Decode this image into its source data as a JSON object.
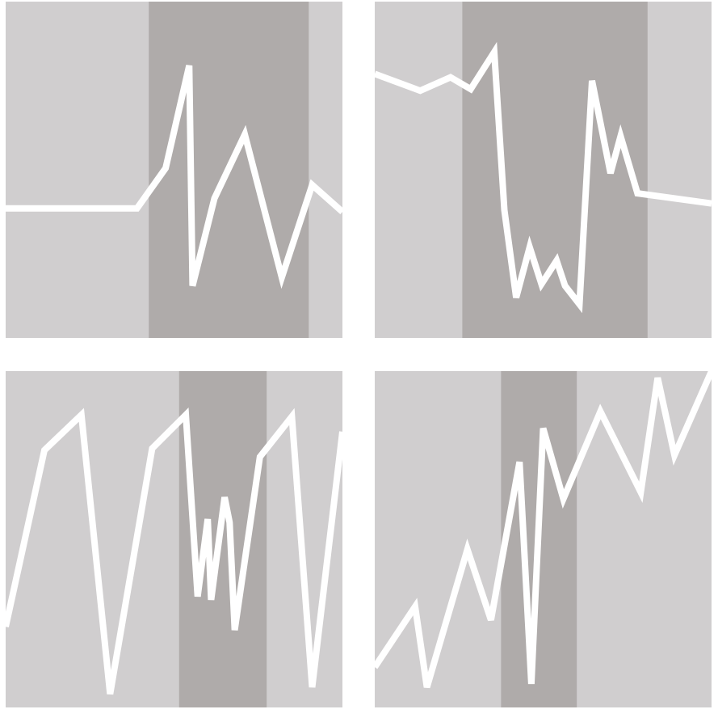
{
  "colors": {
    "page_background": "#ffffff",
    "panel_background": "#d0cecf",
    "highlight_band": "#afabaa",
    "line": "#ffffff"
  },
  "chart_data": [
    {
      "type": "line",
      "title": "",
      "xlabel": "",
      "ylabel": "",
      "grid": false,
      "xlim": [
        0,
        1
      ],
      "ylim": [
        0,
        1
      ],
      "highlight_band": [
        0.425,
        0.9
      ],
      "series": [
        {
          "x": [
            0,
            0.39,
            0.475,
            0.545,
            0.555,
            0.62,
            0.71,
            0.82,
            0.91,
            1.0
          ],
          "y": [
            0.385,
            0.385,
            0.505,
            0.81,
            0.155,
            0.415,
            0.605,
            0.18,
            0.455,
            0.375
          ]
        }
      ]
    },
    {
      "type": "line",
      "title": "",
      "xlabel": "",
      "ylabel": "",
      "grid": false,
      "xlim": [
        0,
        1
      ],
      "ylim": [
        0,
        1
      ],
      "highlight_band": [
        0.26,
        0.81
      ],
      "series": [
        {
          "x": [
            0,
            0.135,
            0.225,
            0.285,
            0.355,
            0.385,
            0.42,
            0.46,
            0.495,
            0.54,
            0.565,
            0.608,
            0.645,
            0.7,
            0.73,
            0.78,
            1.0
          ],
          "y": [
            0.785,
            0.735,
            0.775,
            0.74,
            0.85,
            0.38,
            0.12,
            0.27,
            0.16,
            0.23,
            0.155,
            0.1,
            0.765,
            0.49,
            0.6,
            0.43,
            0.4
          ]
        }
      ]
    },
    {
      "type": "line",
      "title": "",
      "xlabel": "",
      "ylabel": "",
      "grid": false,
      "xlim": [
        0,
        1
      ],
      "ylim": [
        0,
        1
      ],
      "highlight_band": [
        0.515,
        0.775
      ],
      "series": [
        {
          "x": [
            0,
            0.115,
            0.225,
            0.31,
            0.435,
            0.535,
            0.57,
            0.6,
            0.61,
            0.65,
            0.665,
            0.68,
            0.755,
            0.85,
            0.91,
            1.0
          ],
          "y": [
            0.24,
            0.765,
            0.87,
            0.04,
            0.77,
            0.87,
            0.33,
            0.56,
            0.32,
            0.625,
            0.55,
            0.23,
            0.745,
            0.865,
            0.06,
            0.82
          ]
        }
      ]
    },
    {
      "type": "line",
      "title": "",
      "xlabel": "",
      "ylabel": "",
      "grid": false,
      "xlim": [
        0,
        1
      ],
      "ylim": [
        0,
        1
      ],
      "highlight_band": [
        0.375,
        0.6
      ],
      "series": [
        {
          "x": [
            0,
            0.12,
            0.155,
            0.275,
            0.345,
            0.43,
            0.465,
            0.5,
            0.56,
            0.67,
            0.79,
            0.84,
            0.89,
            1.0
          ],
          "y": [
            0.12,
            0.3,
            0.06,
            0.47,
            0.26,
            0.73,
            0.07,
            0.83,
            0.62,
            0.88,
            0.64,
            0.98,
            0.75,
            1.0
          ]
        }
      ]
    }
  ]
}
